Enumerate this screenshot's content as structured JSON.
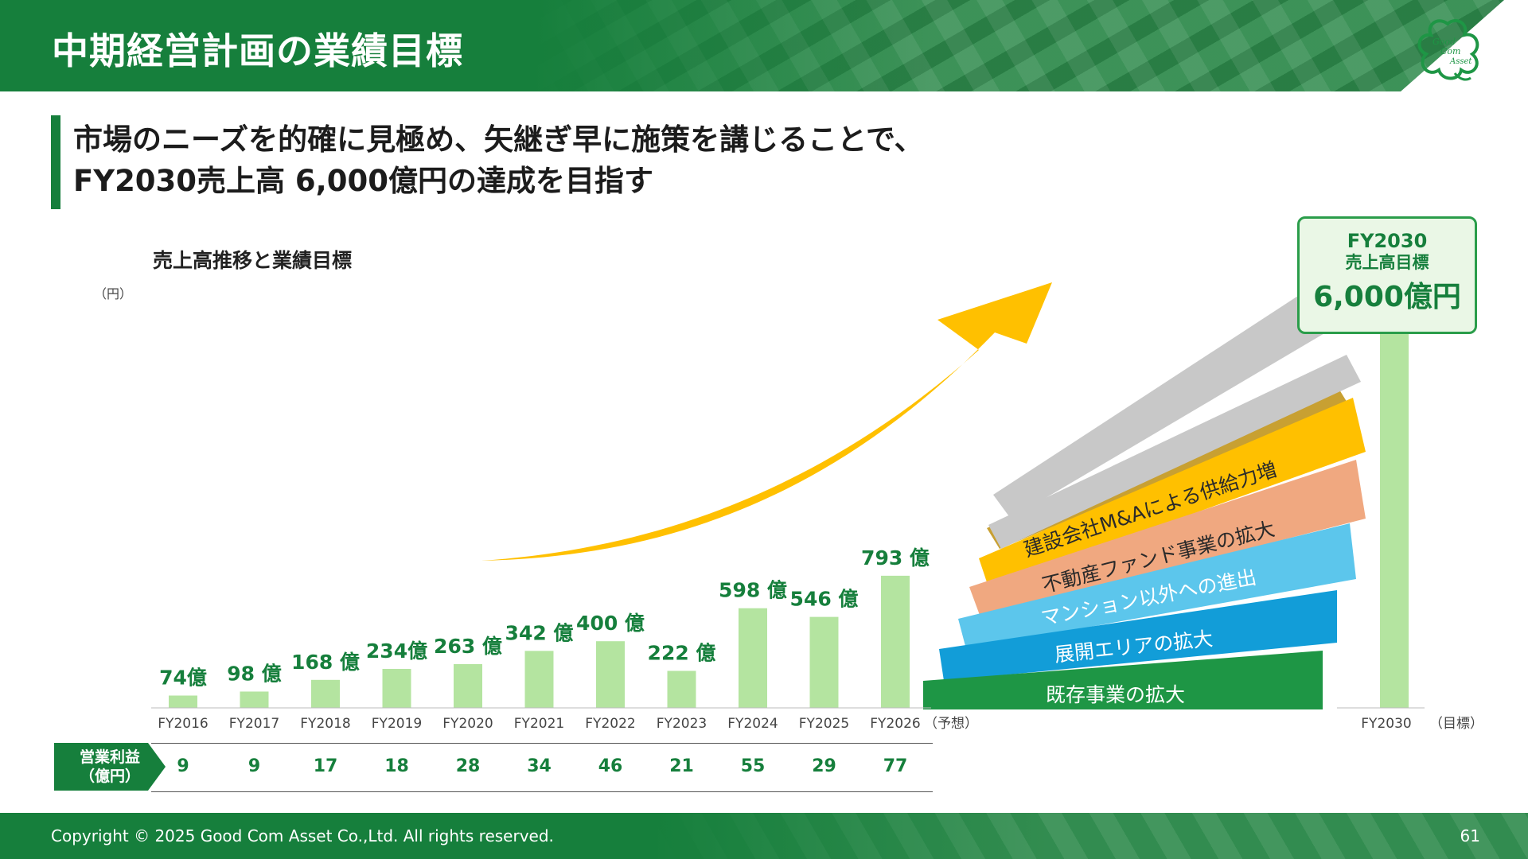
{
  "header": {
    "title": "中期経営計画の業績目標"
  },
  "headline": {
    "line1": "市場のニーズを的確に見極め、矢継ぎ早に施策を講じることで、",
    "line2": "FY2030売上高 6,000億円の達成を目指す"
  },
  "chart_title": "売上高推移と業績目標",
  "unit_label": "（円）",
  "target_box": {
    "line1": "FY2030",
    "line2": "売上高目標",
    "value": "6,000億円"
  },
  "chart_data": {
    "type": "bar",
    "categories": [
      "FY2016",
      "FY2017",
      "FY2018",
      "FY2019",
      "FY2020",
      "FY2021",
      "FY2022",
      "FY2023",
      "FY2024",
      "FY2025",
      "FY2026"
    ],
    "values": [
      74,
      98,
      168,
      234,
      263,
      342,
      400,
      222,
      598,
      546,
      793
    ],
    "value_labels": [
      "74億",
      "98 億",
      "168 億",
      "234億",
      "263 億",
      "342 億",
      "400 億",
      "222 億",
      "598 億",
      "546 億",
      "793 億"
    ],
    "forecast_suffix": "（予想）",
    "target": {
      "category": "FY2030",
      "suffix": "（目標）",
      "value": 6000
    },
    "initiatives": [
      "既存事業の拡大",
      "展開エリアの拡大",
      "マンション以外への進出",
      "不動産ファンド事業の拡大",
      "建設会社M&Aによる供給力増"
    ],
    "colors": {
      "bar": "#b4e4a0",
      "arrow": "#ffc000",
      "band_existing": "#1e9645",
      "band_area": "#129dd8",
      "band_mansion": "#5cc6ec",
      "band_fund": "#f0a880",
      "band_ma": "#ffc000",
      "band_dark_gold": "#c8a032",
      "band_gray": "#c8c8c8"
    }
  },
  "profit_table": {
    "label": "営業利益\n（億円）",
    "values": [
      "9",
      "9",
      "17",
      "18",
      "28",
      "34",
      "46",
      "21",
      "55",
      "29",
      "77"
    ]
  },
  "logo_text": [
    "Good",
    "Com",
    "Asset"
  ],
  "footer": {
    "copyright": "Copyright © 2025 Good Com Asset Co.,Ltd. All rights reserved.",
    "page": "61"
  }
}
